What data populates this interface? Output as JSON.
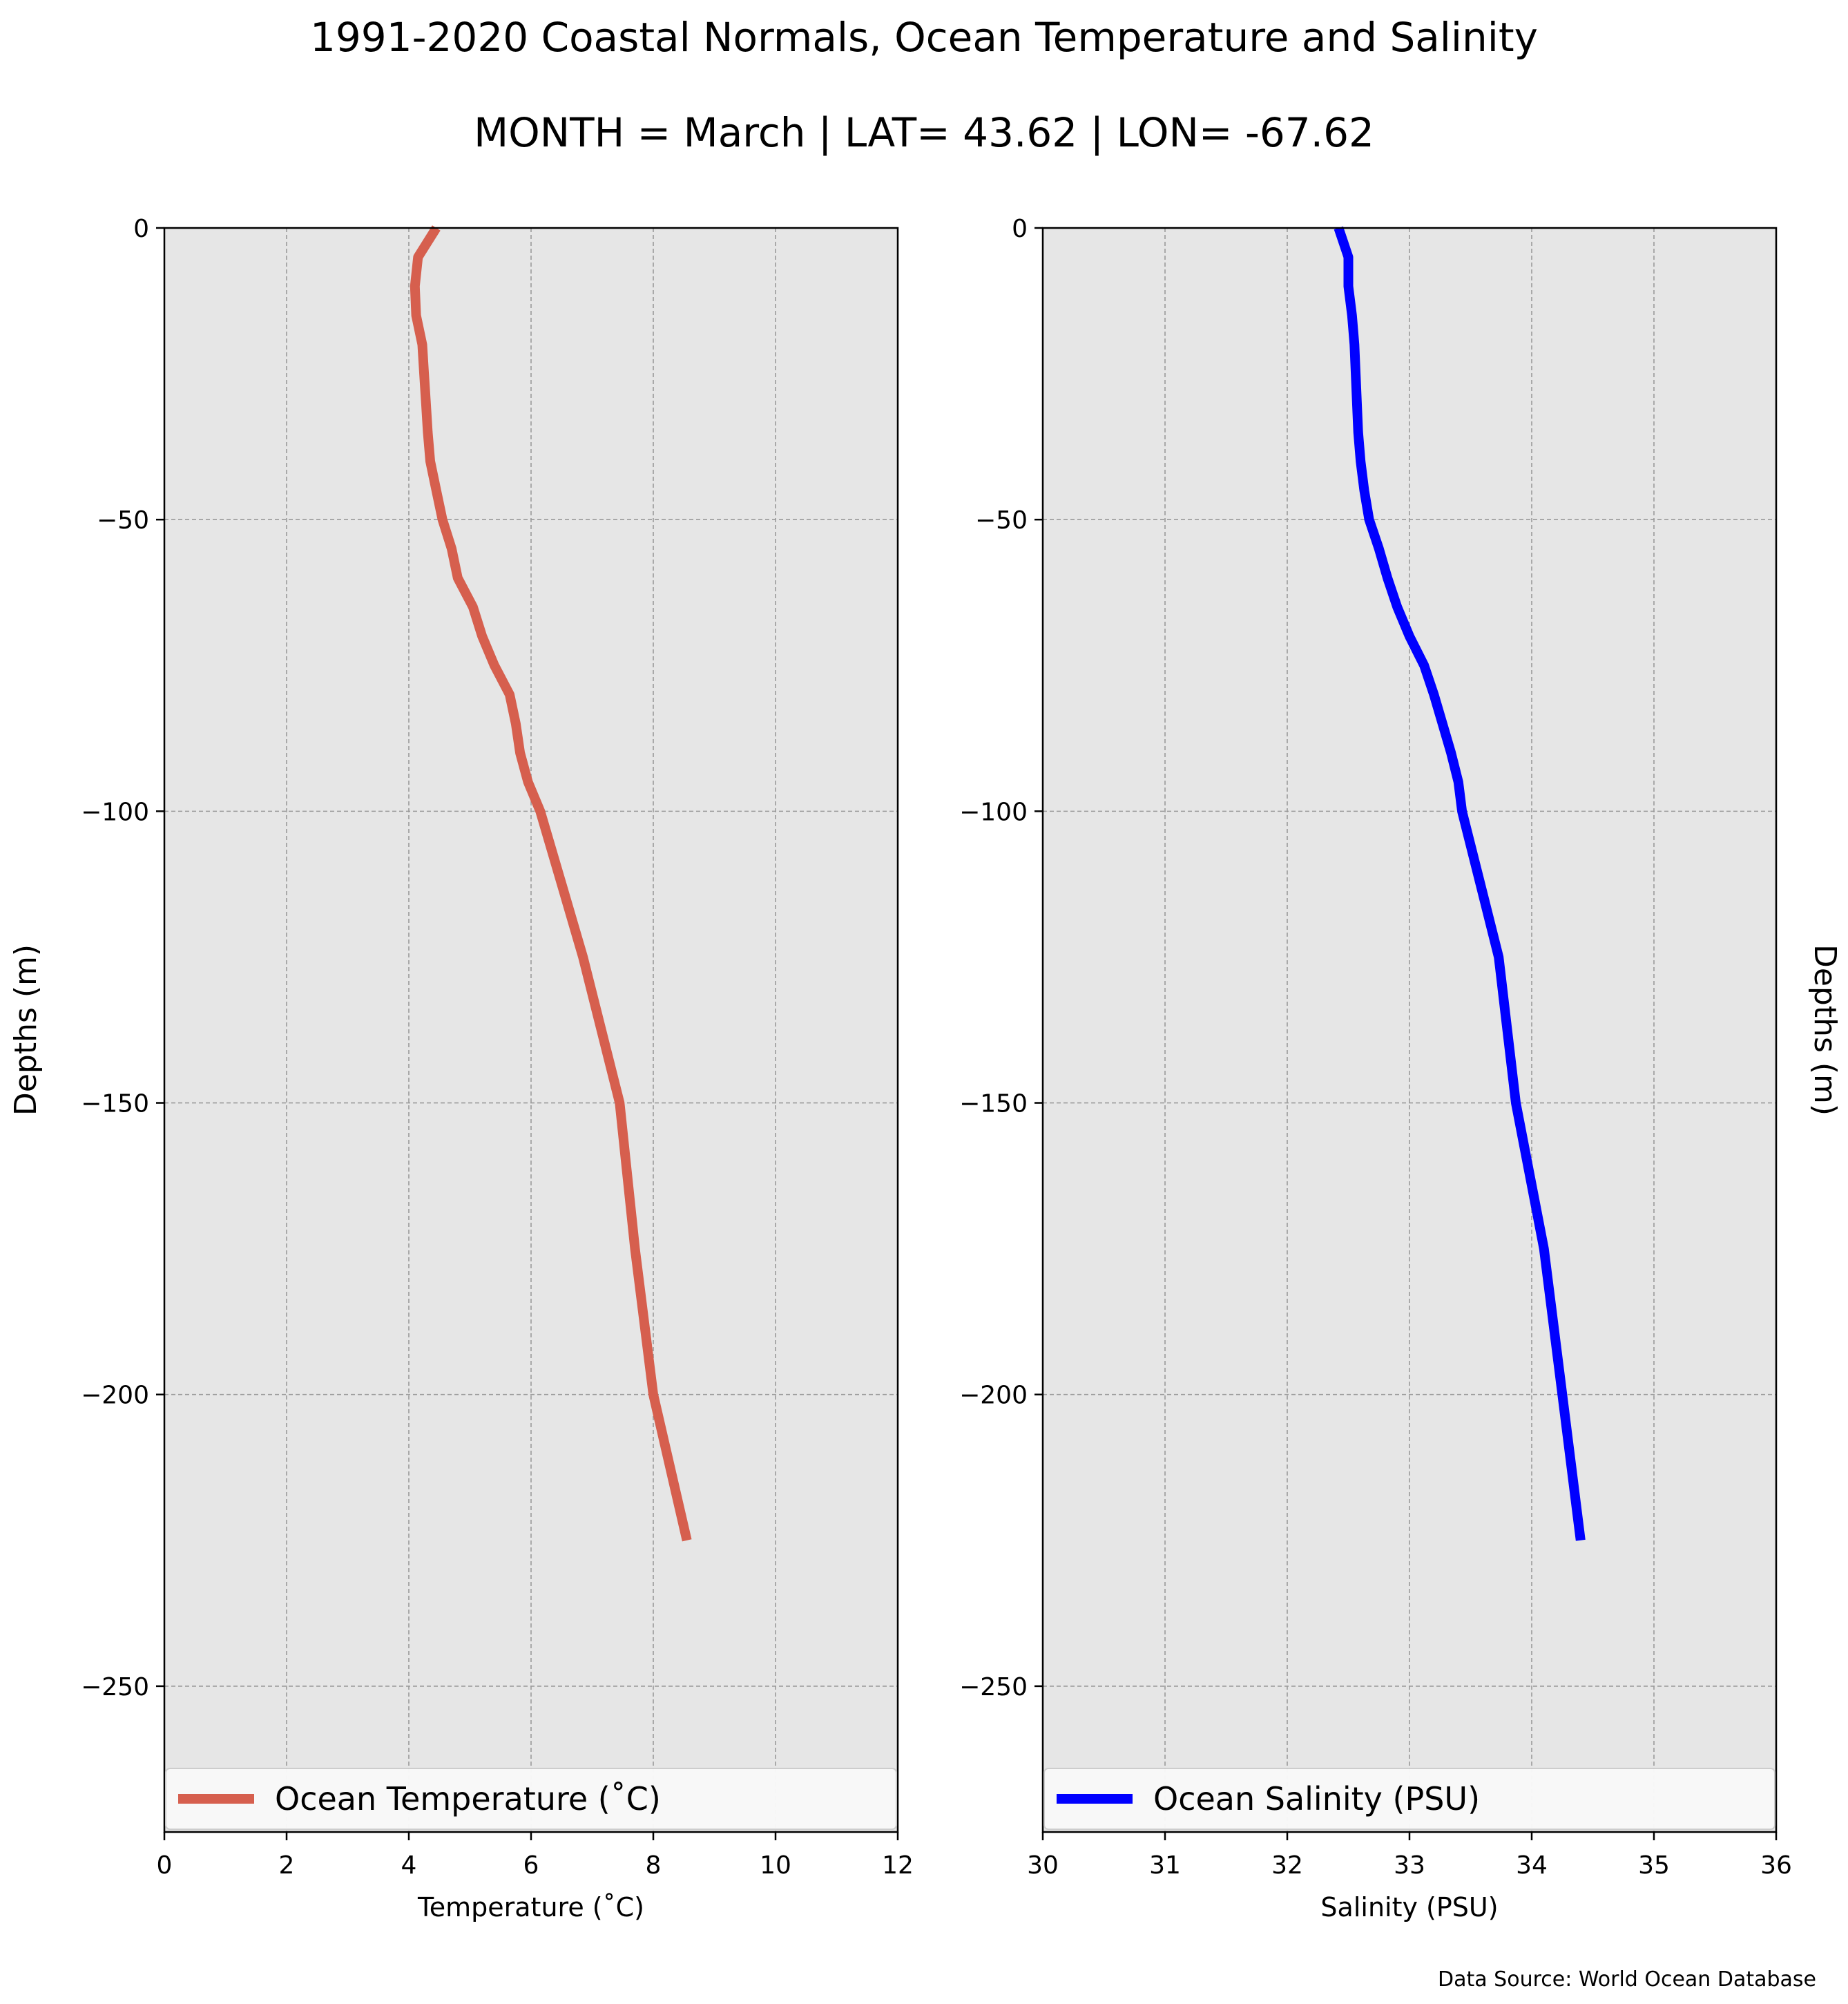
{
  "title": "1991-2020 Coastal Normals, Ocean Temperature and Salinity",
  "subtitle": "MONTH = March | LAT= 43.62 | LON= -67.62",
  "source_note": "Data Source: World Ocean Database",
  "chart_data": [
    {
      "type": "line",
      "xlabel": "Temperature (˚C)",
      "ylabel": "Depths (m)",
      "xlim": [
        0,
        12
      ],
      "ylim": [
        -275,
        0
      ],
      "xticks": [
        0,
        2,
        4,
        6,
        8,
        10,
        12
      ],
      "yticks": [
        0,
        -50,
        -100,
        -150,
        -200,
        -250
      ],
      "ytick_labels": [
        "0",
        "−50",
        "−100",
        "−150",
        "−200",
        "−250"
      ],
      "grid": true,
      "legend": "lower center",
      "series": [
        {
          "name": "Ocean Temperature (˚C)",
          "color": "#d65f4e",
          "points": [
            [
              4.45,
              0
            ],
            [
              4.15,
              -5
            ],
            [
              4.1,
              -10
            ],
            [
              4.12,
              -15
            ],
            [
              4.22,
              -20
            ],
            [
              4.25,
              -25
            ],
            [
              4.28,
              -30
            ],
            [
              4.31,
              -35
            ],
            [
              4.35,
              -40
            ],
            [
              4.45,
              -45
            ],
            [
              4.55,
              -50
            ],
            [
              4.7,
              -55
            ],
            [
              4.8,
              -60
            ],
            [
              5.05,
              -65
            ],
            [
              5.2,
              -70
            ],
            [
              5.4,
              -75
            ],
            [
              5.65,
              -80
            ],
            [
              5.75,
              -85
            ],
            [
              5.82,
              -90
            ],
            [
              5.95,
              -95
            ],
            [
              6.15,
              -100
            ],
            [
              6.5,
              -112.5
            ],
            [
              6.85,
              -125
            ],
            [
              7.45,
              -150
            ],
            [
              7.7,
              -175
            ],
            [
              8.0,
              -200
            ],
            [
              8.55,
              -225
            ]
          ]
        }
      ]
    },
    {
      "type": "line",
      "xlabel": "Salinity (PSU)",
      "ylabel": "Depths (m)",
      "xlim": [
        30,
        36
      ],
      "ylim": [
        -275,
        0
      ],
      "xticks": [
        30,
        31,
        32,
        33,
        34,
        35,
        36
      ],
      "yticks": [
        0,
        -50,
        -100,
        -150,
        -200,
        -250
      ],
      "ytick_labels": [
        "0",
        "−50",
        "−100",
        "−150",
        "−200",
        "−250"
      ],
      "grid": true,
      "legend": "lower center",
      "series": [
        {
          "name": "Ocean Salinity (PSU)",
          "color": "#0000ff",
          "points": [
            [
              32.42,
              0
            ],
            [
              32.5,
              -5
            ],
            [
              32.5,
              -10
            ],
            [
              32.53,
              -15
            ],
            [
              32.55,
              -20
            ],
            [
              32.56,
              -25
            ],
            [
              32.57,
              -30
            ],
            [
              32.58,
              -35
            ],
            [
              32.6,
              -40
            ],
            [
              32.63,
              -45
            ],
            [
              32.67,
              -50
            ],
            [
              32.75,
              -55
            ],
            [
              32.82,
              -60
            ],
            [
              32.9,
              -65
            ],
            [
              33.0,
              -70
            ],
            [
              33.12,
              -75
            ],
            [
              33.2,
              -80
            ],
            [
              33.27,
              -85
            ],
            [
              33.34,
              -90
            ],
            [
              33.4,
              -95
            ],
            [
              33.43,
              -100
            ],
            [
              33.58,
              -112.5
            ],
            [
              33.73,
              -125
            ],
            [
              33.87,
              -150
            ],
            [
              34.1,
              -175
            ],
            [
              34.25,
              -200
            ],
            [
              34.4,
              -225
            ]
          ]
        }
      ]
    }
  ]
}
